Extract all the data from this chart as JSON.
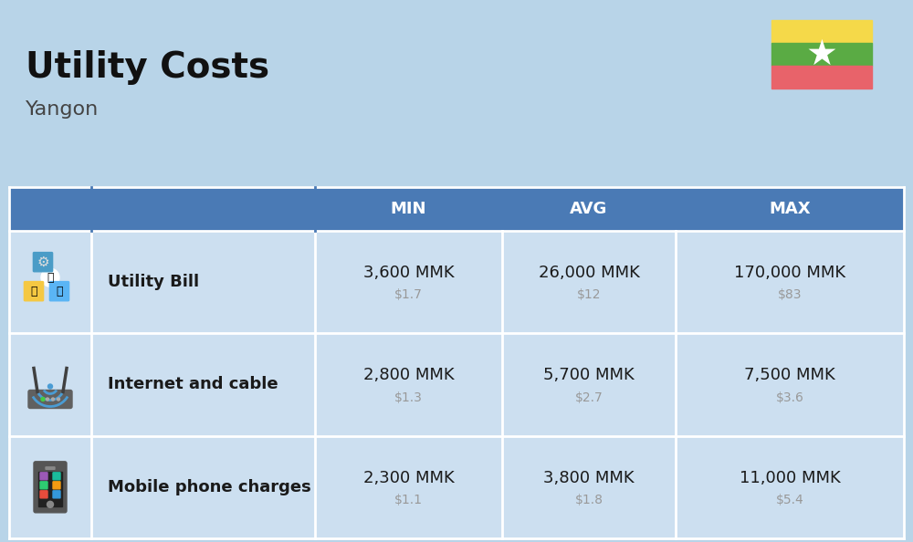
{
  "title": "Utility Costs",
  "subtitle": "Yangon",
  "background_color": "#b8d4e8",
  "header_bg_color": "#4a7ab5",
  "header_text_color": "#ffffff",
  "row_bg_color": "#ccdff0",
  "table_line_color": "#ffffff",
  "col_headers": [
    "MIN",
    "AVG",
    "MAX"
  ],
  "rows": [
    {
      "label": "Utility Bill",
      "min_mmk": "3,600 MMK",
      "min_usd": "$1.7",
      "avg_mmk": "26,000 MMK",
      "avg_usd": "$12",
      "max_mmk": "170,000 MMK",
      "max_usd": "$83"
    },
    {
      "label": "Internet and cable",
      "min_mmk": "2,800 MMK",
      "min_usd": "$1.3",
      "avg_mmk": "5,700 MMK",
      "avg_usd": "$2.7",
      "max_mmk": "7,500 MMK",
      "max_usd": "$3.6"
    },
    {
      "label": "Mobile phone charges",
      "min_mmk": "2,300 MMK",
      "min_usd": "$1.1",
      "avg_mmk": "3,800 MMK",
      "avg_usd": "$1.8",
      "max_mmk": "11,000 MMK",
      "max_usd": "$5.4"
    }
  ],
  "mmk_fontsize": 13,
  "usd_fontsize": 10,
  "label_fontsize": 13,
  "header_fontsize": 13,
  "title_fontsize": 28,
  "subtitle_fontsize": 16,
  "usd_color": "#999999",
  "label_color": "#1a1a1a",
  "mmk_color": "#1a1a1a",
  "flag_yellow": "#f5d949",
  "flag_green": "#5aab44",
  "flag_red": "#e8636a"
}
